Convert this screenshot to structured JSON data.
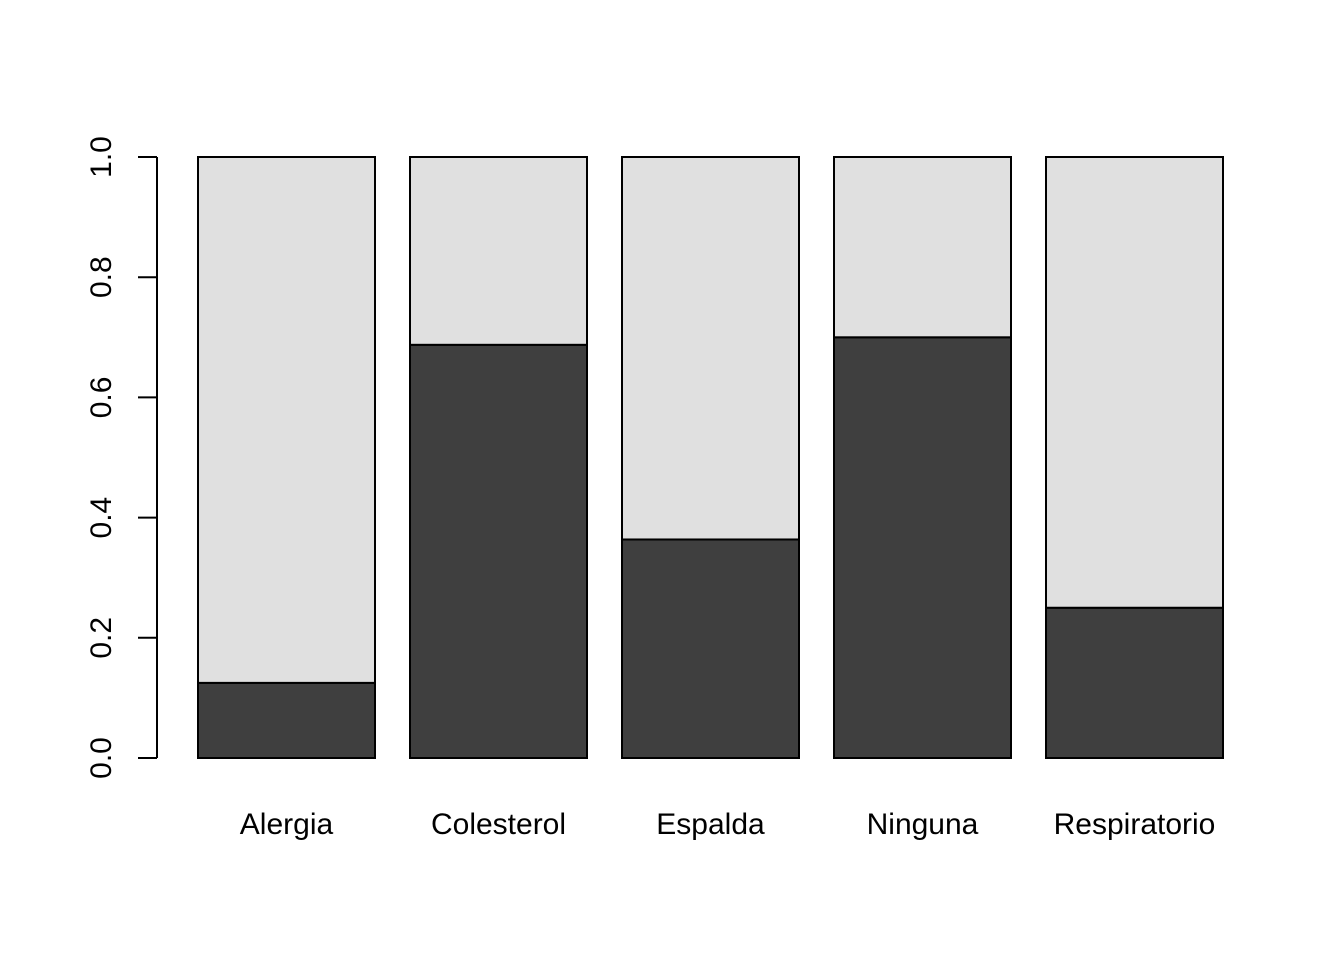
{
  "chart_data": {
    "type": "bar",
    "stacked": true,
    "categories": [
      "Alergia",
      "Colesterol",
      "Espalda",
      "Ninguna",
      "Respiratorio"
    ],
    "series": [
      {
        "values": [
          0.125,
          0.6875,
          0.3636,
          0.7,
          0.25
        ],
        "color": "#3f3f3f"
      },
      {
        "values": [
          0.875,
          0.3125,
          0.6364,
          0.3,
          0.75
        ],
        "color": "#e0e0e0"
      }
    ],
    "ylim": [
      0,
      1
    ],
    "yticks": [
      "0.0",
      "0.2",
      "0.4",
      "0.6",
      "0.8",
      "1.0"
    ],
    "grid": false,
    "legend": "none"
  }
}
